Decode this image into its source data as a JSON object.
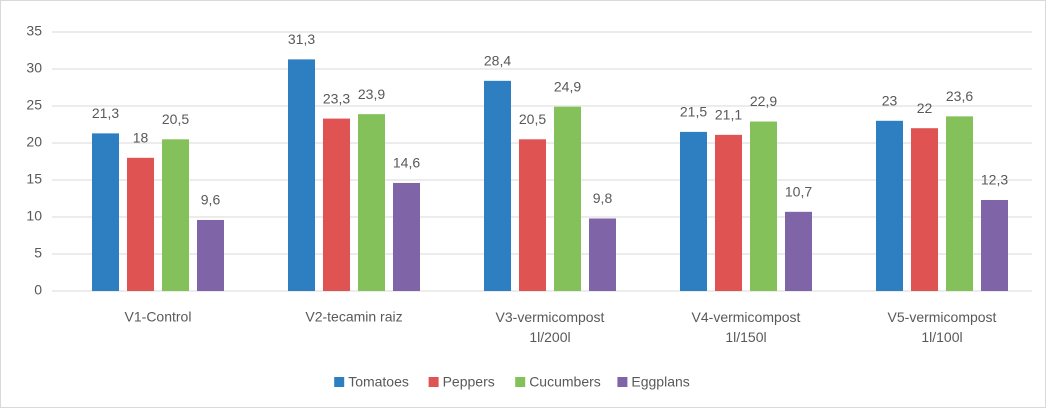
{
  "chart_data": {
    "type": "bar",
    "categories": [
      "V1-Control",
      "V2-tecamin raiz",
      "V3-vermicompost\n1l/200l",
      "V4-vermicompost\n1l/150l",
      "V5-vermicompost\n1l/100l"
    ],
    "series": [
      {
        "name": "Tomatoes",
        "color": "#2e7ec2",
        "values": [
          21.3,
          31.3,
          28.4,
          21.5,
          23
        ],
        "value_labels": [
          "21,3",
          "31,3",
          "28,4",
          "21,5",
          "23"
        ]
      },
      {
        "name": "Peppers",
        "color": "#e05353",
        "values": [
          18,
          23.3,
          20.5,
          21.1,
          22
        ],
        "value_labels": [
          "18",
          "23,3",
          "20,5",
          "21,1",
          "22"
        ]
      },
      {
        "name": "Cucumbers",
        "color": "#84c15b",
        "values": [
          20.5,
          23.9,
          24.9,
          22.9,
          23.6
        ],
        "value_labels": [
          "20,5",
          "23,9",
          "24,9",
          "22,9",
          "23,6"
        ]
      },
      {
        "name": "Eggplans",
        "color": "#8064a8",
        "values": [
          9.6,
          14.6,
          9.8,
          10.7,
          12.3
        ],
        "value_labels": [
          "9,6",
          "14,6",
          "9,8",
          "10,7",
          "12,3"
        ]
      }
    ],
    "ylim": [
      0,
      35
    ],
    "yticks": [
      0,
      5,
      10,
      15,
      20,
      25,
      30,
      35
    ],
    "grid": true,
    "legend": "bottom"
  }
}
